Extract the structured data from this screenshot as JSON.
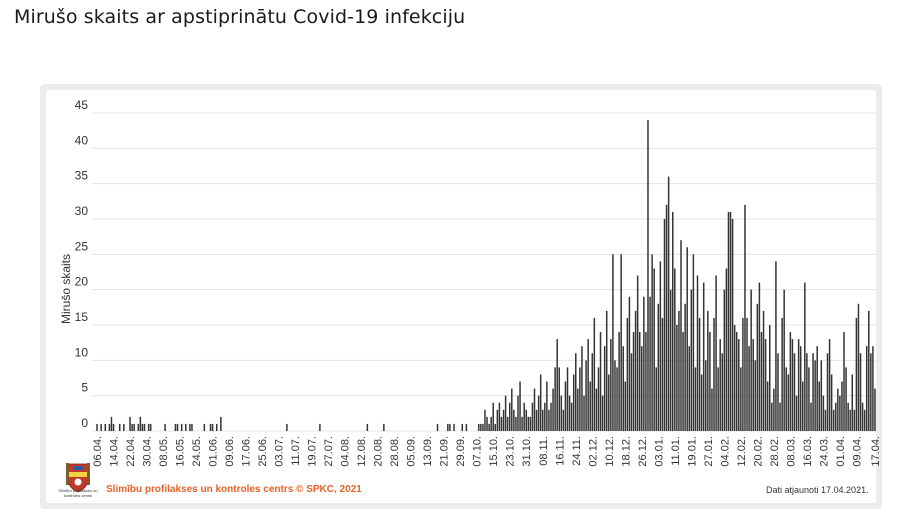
{
  "page": {
    "title": "Mirušo skaits ar apstiprinātu Covid-19 infekciju"
  },
  "footer": {
    "source": "Slimību profilakses un kontroles centrs © SPKC, 2021",
    "updated": "Dati atjaunoti 17.04.2021.",
    "logo_caption": "Slimību profilakses un kontroles centrs"
  },
  "colors": {
    "bar": "#333333",
    "grid": "#e3e3e3",
    "source_text": "#e8622a"
  },
  "chart_data": {
    "type": "bar",
    "ylabel": "Mirušo skaits",
    "xlabel": "",
    "ylim": [
      0,
      45
    ],
    "yticks": [
      0,
      5,
      10,
      15,
      20,
      25,
      30,
      35,
      40,
      45
    ],
    "grid": true,
    "first_date": "06.04.",
    "xtick_labels": [
      "06.04.",
      "14.04.",
      "22.04.",
      "30.04.",
      "08.05.",
      "16.05.",
      "24.05.",
      "01.06.",
      "09.06.",
      "17.06.",
      "25.06.",
      "03.07.",
      "11.07.",
      "19.07.",
      "27.07.",
      "04.08.",
      "12.08.",
      "20.08.",
      "28.08.",
      "05.09.",
      "13.09.",
      "21.09.",
      "29.09.",
      "07.10.",
      "15.10.",
      "23.10.",
      "31.10.",
      "08.11.",
      "16.11.",
      "24.11.",
      "02.12.",
      "10.12.",
      "18.12.",
      "26.12.",
      "03.01.",
      "11.01.",
      "19.01.",
      "27.01.",
      "04.02.",
      "12.02.",
      "20.02.",
      "28.02.",
      "08.03.",
      "16.03.",
      "24.03.",
      "01.04.",
      "09.04.",
      "17.04."
    ],
    "values": [
      1,
      0,
      1,
      0,
      1,
      0,
      1,
      2,
      1,
      0,
      0,
      1,
      0,
      1,
      0,
      0,
      2,
      1,
      1,
      0,
      1,
      2,
      1,
      1,
      0,
      1,
      1,
      0,
      0,
      0,
      0,
      0,
      0,
      1,
      0,
      0,
      0,
      0,
      1,
      1,
      0,
      1,
      0,
      1,
      0,
      1,
      1,
      0,
      0,
      0,
      0,
      0,
      1,
      0,
      0,
      1,
      1,
      0,
      1,
      0,
      2,
      0,
      0,
      0,
      0,
      0,
      0,
      0,
      0,
      0,
      0,
      0,
      0,
      0,
      0,
      0,
      0,
      0,
      0,
      0,
      0,
      0,
      0,
      0,
      0,
      0,
      0,
      0,
      0,
      0,
      0,
      0,
      1,
      0,
      0,
      0,
      0,
      0,
      0,
      0,
      0,
      0,
      0,
      0,
      0,
      0,
      0,
      0,
      1,
      0,
      0,
      0,
      0,
      0,
      0,
      0,
      0,
      0,
      0,
      0,
      0,
      0,
      0,
      0,
      0,
      0,
      0,
      0,
      0,
      0,
      0,
      1,
      0,
      0,
      0,
      0,
      0,
      0,
      0,
      1,
      0,
      0,
      0,
      0,
      0,
      0,
      0,
      0,
      0,
      0,
      0,
      0,
      0,
      0,
      0,
      0,
      0,
      0,
      0,
      0,
      0,
      0,
      0,
      0,
      0,
      1,
      0,
      0,
      0,
      0,
      1,
      1,
      0,
      1,
      0,
      0,
      0,
      1,
      0,
      1,
      0,
      0,
      0,
      0,
      0,
      1,
      1,
      1,
      3,
      2,
      1,
      2,
      4,
      1,
      3,
      4,
      2,
      3,
      5,
      2,
      4,
      6,
      3,
      2,
      5,
      7,
      2,
      4,
      3,
      2,
      2,
      4,
      6,
      3,
      5,
      8,
      3,
      4,
      7,
      3,
      4,
      6,
      9,
      13,
      9,
      5,
      3,
      7,
      9,
      5,
      4,
      8,
      11,
      6,
      9,
      12,
      5,
      10,
      13,
      7,
      11,
      16,
      6,
      9,
      14,
      5,
      12,
      17,
      8,
      13,
      25,
      10,
      9,
      14,
      25,
      12,
      7,
      16,
      19,
      11,
      14,
      17,
      22,
      14,
      12,
      19,
      14,
      44,
      19,
      25,
      23,
      9,
      18,
      24,
      16,
      30,
      32,
      36,
      20,
      31,
      23,
      15,
      17,
      27,
      14,
      18,
      26,
      12,
      20,
      25,
      9,
      22,
      16,
      8,
      21,
      10,
      17,
      14,
      6,
      16,
      22,
      9,
      13,
      11,
      20,
      23,
      31,
      31,
      30,
      15,
      14,
      13,
      9,
      16,
      32,
      16,
      12,
      20,
      13,
      10,
      18,
      21,
      14,
      17,
      13,
      7,
      15,
      4,
      6,
      24,
      11,
      4,
      16,
      20,
      9,
      8,
      14,
      13,
      11,
      5,
      13,
      12,
      7,
      21,
      11,
      9,
      4,
      11,
      10,
      12,
      7,
      10,
      5,
      3,
      11,
      13,
      8,
      3,
      4,
      6,
      5,
      7,
      14,
      9,
      4,
      3,
      8,
      3,
      16,
      18,
      11,
      4,
      3,
      12,
      17,
      11,
      12,
      6
    ]
  }
}
